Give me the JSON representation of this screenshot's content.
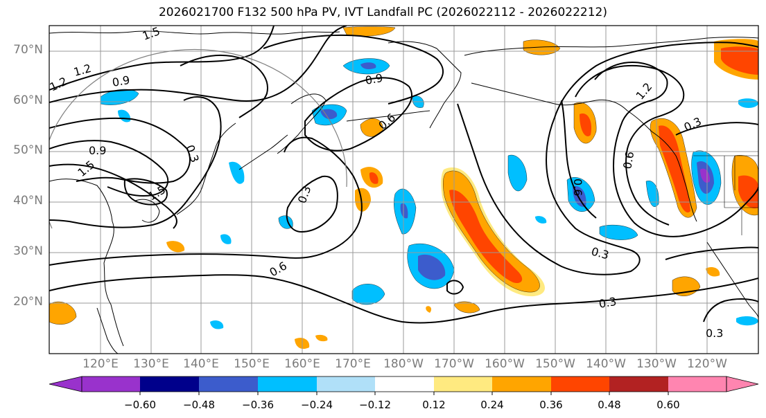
{
  "title": "2026021700 F132 500 hPa PV, IVT Landfall PC (2026022112 - 2026022212)",
  "lat_labels": [
    "70°N",
    "60°N",
    "50°N",
    "40°N",
    "30°N",
    "20°N"
  ],
  "lon_labels": [
    "120°E",
    "130°E",
    "140°E",
    "150°E",
    "160°E",
    "170°E",
    "180°W",
    "170°W",
    "160°W",
    "150°W",
    "140°W",
    "130°W",
    "120°W"
  ],
  "contour_labels": [
    "1.2",
    "1.2",
    "0.9",
    "1.5",
    "0.9",
    "1.5",
    "1.5",
    "0.9",
    "0.6",
    "0.3",
    "0.6",
    "0.3",
    "0.3",
    "0.6",
    "1.2",
    "0.3",
    "0.6",
    "0.3"
  ],
  "colorbar": {
    "ticks": [
      "−0.60",
      "−0.48",
      "−0.36",
      "−0.24",
      "−0.12",
      "0.12",
      "0.24",
      "0.36",
      "0.48",
      "0.60"
    ],
    "colors": [
      "#9932cc",
      "#00008b",
      "#3c5ccc",
      "#00bfff",
      "#b0e0f8",
      "#ffffff",
      "#ffea80",
      "#ffa500",
      "#ff4500",
      "#b22222",
      "#ff85b0"
    ]
  }
}
